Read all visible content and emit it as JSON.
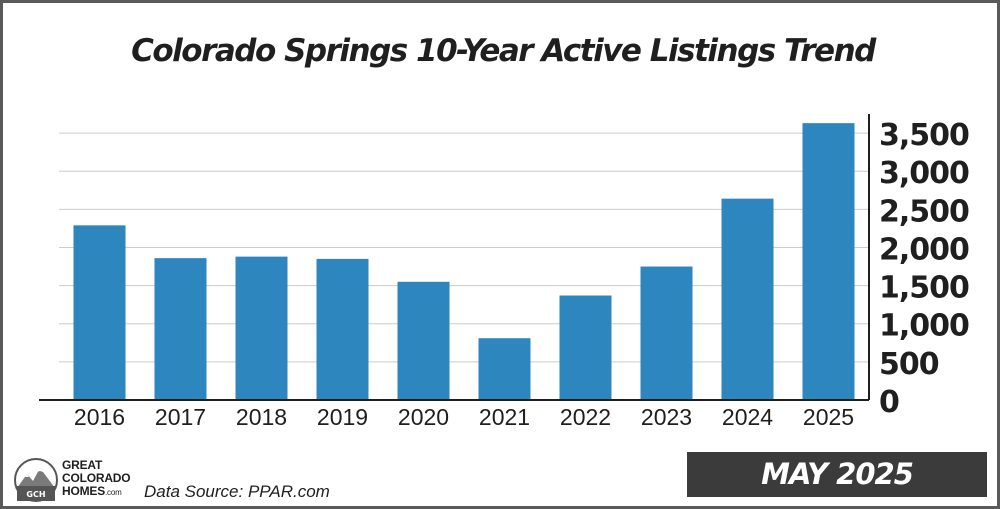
{
  "chart_data": {
    "type": "bar",
    "title": "Colorado Springs 10-Year Active Listings Trend",
    "categories": [
      "2016",
      "2017",
      "2018",
      "2019",
      "2020",
      "2021",
      "2022",
      "2023",
      "2024",
      "2025"
    ],
    "values": [
      2290,
      1860,
      1880,
      1850,
      1550,
      810,
      1370,
      1750,
      2640,
      3630
    ],
    "ylim": [
      0,
      3750
    ],
    "yticks": [
      0,
      500,
      1000,
      1500,
      2000,
      2500,
      3000,
      3500
    ],
    "ytick_labels": [
      "0",
      "500",
      "1,000",
      "1,500",
      "2,000",
      "2,500",
      "3,000",
      "3,500"
    ],
    "y_axis_side": "right",
    "grid": true,
    "bar_color": "#2e86bf",
    "grid_color": "#cccccc",
    "axis_color": "#1f1f1f"
  },
  "footer": {
    "brand_line1": "GREAT",
    "brand_line2": "COLORADO",
    "brand_line3": "HOMES",
    "brand_line3_suffix": ".com",
    "logo_initials": "GCH",
    "data_source": "Data Source: PPAR.com",
    "date_label": "MAY 2025"
  },
  "colors": {
    "banner_background": "#3b3b3b",
    "frame_border": "#5a5a5a"
  }
}
